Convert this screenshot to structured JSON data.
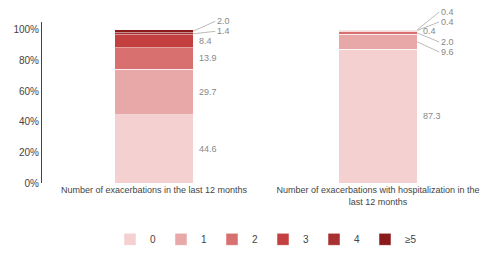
{
  "chart_data": {
    "type": "bar",
    "stacked": true,
    "categories": [
      "Number of exacerbations in the last 12 months",
      "Number of exacerbations with hospitalization in the\nlast 12 months"
    ],
    "series": [
      {
        "name": "0",
        "color": "#f5d0d0",
        "values": [
          44.6,
          87.3
        ],
        "value_labels": [
          "44.6",
          "87.3"
        ]
      },
      {
        "name": "1",
        "color": "#e8a8a8",
        "values": [
          29.7,
          9.6
        ],
        "value_labels": [
          "29.7",
          "9.6"
        ]
      },
      {
        "name": "2",
        "color": "#d97070",
        "values": [
          13.9,
          2.0
        ],
        "value_labels": [
          "13.9",
          "2.0"
        ]
      },
      {
        "name": "3",
        "color": "#c44040",
        "values": [
          8.4,
          0.4
        ],
        "value_labels": [
          "8.4",
          "0.4"
        ]
      },
      {
        "name": "4",
        "color": "#a83030",
        "values": [
          1.4,
          0.4
        ],
        "value_labels": [
          "1.4",
          "0.4"
        ]
      },
      {
        "name": "≥5",
        "color": "#8b1a1a",
        "values": [
          2.0,
          0.4
        ],
        "value_labels": [
          "2.0",
          "0.4"
        ]
      }
    ],
    "ylim": [
      0,
      105
    ],
    "yticks": [
      {
        "value": 0,
        "label": "0%"
      },
      {
        "value": 20,
        "label": "20%"
      },
      {
        "value": 40,
        "label": "40%"
      },
      {
        "value": 60,
        "label": "60%"
      },
      {
        "value": 80,
        "label": "80%"
      },
      {
        "value": 100,
        "label": "100%"
      }
    ],
    "grid": false,
    "legend": "bottom",
    "data_labels": true
  }
}
